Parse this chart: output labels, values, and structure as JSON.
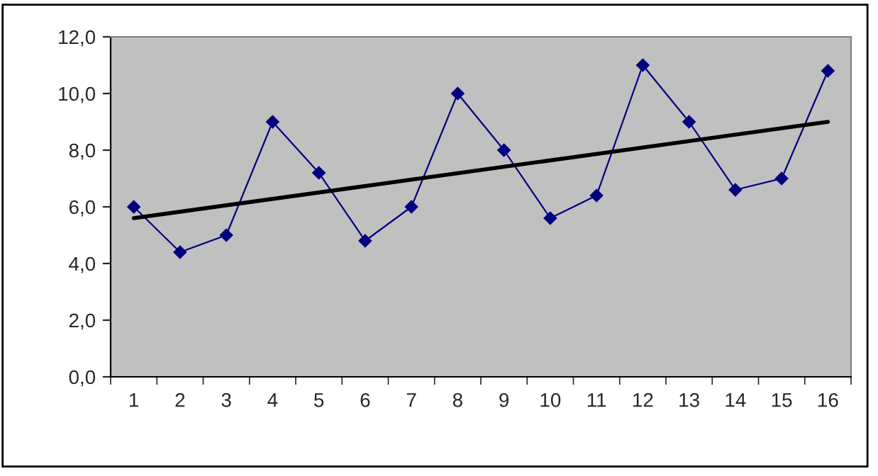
{
  "chart_data": {
    "type": "line",
    "categories": [
      "1",
      "2",
      "3",
      "4",
      "5",
      "6",
      "7",
      "8",
      "9",
      "10",
      "11",
      "12",
      "13",
      "14",
      "15",
      "16"
    ],
    "series": [
      {
        "color": "#000080",
        "values": [
          6.0,
          4.4,
          5.0,
          9.0,
          7.2,
          4.8,
          6.0,
          10.0,
          8.0,
          5.6,
          6.4,
          11.0,
          9.0,
          6.6,
          7.0,
          10.8
        ],
        "marker": "diamond"
      },
      {
        "type": "line",
        "color": "#000000",
        "x": [
          "1",
          "16"
        ],
        "values": [
          5.6,
          9.0
        ],
        "marker": "none"
      }
    ],
    "ylim": [
      0,
      12
    ],
    "yticks": [
      {
        "value": 0,
        "label": "0,0"
      },
      {
        "value": 2,
        "label": "2,0"
      },
      {
        "value": 4,
        "label": "4,0"
      },
      {
        "value": 6,
        "label": "6,0"
      },
      {
        "value": 8,
        "label": "8,0"
      },
      {
        "value": 10,
        "label": "10,0"
      },
      {
        "value": 12,
        "label": "12,0"
      }
    ],
    "line_style": "solid"
  }
}
